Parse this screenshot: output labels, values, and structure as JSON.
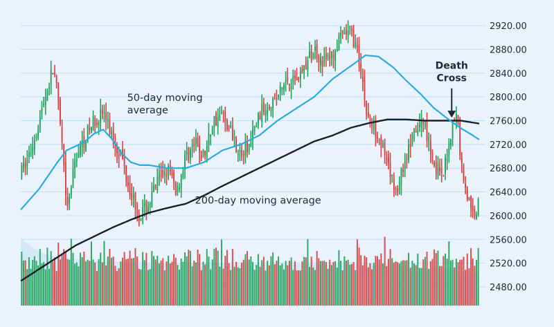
{
  "chart_data": {
    "type": "candlestick",
    "title": "",
    "xlabel": "",
    "ylabel": "",
    "y_axis_position": "right",
    "yticks": [
      2480,
      2520,
      2560,
      2600,
      2640,
      2680,
      2720,
      2760,
      2800,
      2840,
      2880,
      2920
    ],
    "ytick_labels": [
      "2480.00",
      "2520.00",
      "2560.00",
      "2600.00",
      "2640.00",
      "2680.00",
      "2720.00",
      "2760.00",
      "2800.00",
      "2840.00",
      "2880.00",
      "2920.00"
    ],
    "ylim": [
      2448,
      2930
    ],
    "grid": true,
    "colors": {
      "up": "#1fa35a",
      "down": "#d94141",
      "ma50": "#29aae1",
      "ma200": "#1c1f2a",
      "volume_area": "#cfe6f7",
      "grid": "#bfdff3",
      "background": "#eaf3fb"
    },
    "price_anchors": [
      [
        0,
        2670
      ],
      [
        5,
        2705
      ],
      [
        10,
        2760
      ],
      [
        15,
        2820
      ],
      [
        18,
        2850
      ],
      [
        20,
        2800
      ],
      [
        23,
        2700
      ],
      [
        25,
        2600
      ],
      [
        30,
        2700
      ],
      [
        35,
        2730
      ],
      [
        40,
        2760
      ],
      [
        45,
        2775
      ],
      [
        50,
        2730
      ],
      [
        55,
        2700
      ],
      [
        60,
        2640
      ],
      [
        65,
        2600
      ],
      [
        70,
        2620
      ],
      [
        75,
        2660
      ],
      [
        80,
        2680
      ],
      [
        85,
        2640
      ],
      [
        90,
        2700
      ],
      [
        95,
        2720
      ],
      [
        100,
        2700
      ],
      [
        105,
        2760
      ],
      [
        110,
        2770
      ],
      [
        115,
        2740
      ],
      [
        120,
        2700
      ],
      [
        125,
        2720
      ],
      [
        130,
        2770
      ],
      [
        135,
        2790
      ],
      [
        140,
        2800
      ],
      [
        145,
        2830
      ],
      [
        150,
        2830
      ],
      [
        155,
        2850
      ],
      [
        160,
        2880
      ],
      [
        165,
        2860
      ],
      [
        170,
        2870
      ],
      [
        175,
        2900
      ],
      [
        180,
        2910
      ],
      [
        183,
        2880
      ],
      [
        186,
        2840
      ],
      [
        188,
        2780
      ],
      [
        190,
        2760
      ],
      [
        195,
        2740
      ],
      [
        200,
        2680
      ],
      [
        205,
        2640
      ],
      [
        210,
        2700
      ],
      [
        215,
        2740
      ],
      [
        220,
        2760
      ],
      [
        225,
        2690
      ],
      [
        230,
        2660
      ],
      [
        235,
        2750
      ],
      [
        238,
        2770
      ],
      [
        240,
        2690
      ],
      [
        243,
        2640
      ],
      [
        246,
        2600
      ],
      [
        250,
        2620
      ]
    ],
    "ma50": [
      [
        0,
        2610
      ],
      [
        10,
        2645
      ],
      [
        20,
        2690
      ],
      [
        25,
        2710
      ],
      [
        30,
        2717
      ],
      [
        35,
        2725
      ],
      [
        40,
        2738
      ],
      [
        45,
        2745
      ],
      [
        50,
        2728
      ],
      [
        55,
        2705
      ],
      [
        60,
        2690
      ],
      [
        65,
        2685
      ],
      [
        70,
        2685
      ],
      [
        80,
        2680
      ],
      [
        90,
        2680
      ],
      [
        100,
        2690
      ],
      [
        110,
        2710
      ],
      [
        120,
        2720
      ],
      [
        130,
        2735
      ],
      [
        140,
        2760
      ],
      [
        150,
        2780
      ],
      [
        160,
        2800
      ],
      [
        170,
        2830
      ],
      [
        180,
        2852
      ],
      [
        188,
        2870
      ],
      [
        195,
        2868
      ],
      [
        203,
        2850
      ],
      [
        210,
        2828
      ],
      [
        218,
        2805
      ],
      [
        225,
        2782
      ],
      [
        232,
        2765
      ],
      [
        240,
        2747
      ],
      [
        245,
        2738
      ],
      [
        250,
        2728
      ]
    ],
    "ma200": [
      [
        0,
        2490
      ],
      [
        10,
        2510
      ],
      [
        20,
        2530
      ],
      [
        30,
        2550
      ],
      [
        40,
        2565
      ],
      [
        50,
        2580
      ],
      [
        60,
        2593
      ],
      [
        70,
        2605
      ],
      [
        80,
        2613
      ],
      [
        90,
        2620
      ],
      [
        100,
        2634
      ],
      [
        110,
        2650
      ],
      [
        120,
        2665
      ],
      [
        130,
        2680
      ],
      [
        140,
        2695
      ],
      [
        150,
        2710
      ],
      [
        160,
        2725
      ],
      [
        170,
        2735
      ],
      [
        180,
        2748
      ],
      [
        190,
        2756
      ],
      [
        200,
        2762
      ],
      [
        210,
        2762
      ],
      [
        220,
        2760
      ],
      [
        230,
        2760
      ],
      [
        240,
        2760
      ],
      [
        250,
        2755
      ]
    ],
    "annotations": [
      {
        "text": "50-day moving average",
        "lines": [
          "50-day moving",
          "average"
        ],
        "x": 58,
        "y": 2793
      },
      {
        "text": "200-day moving average",
        "lines": [
          "200-day moving average"
        ],
        "x": 95,
        "y": 2620
      },
      {
        "text": "Death Cross",
        "lines": [
          "Death",
          "Cross"
        ],
        "x": 235,
        "y": 2847,
        "bold": true,
        "arrow_to_y": 2765
      }
    ]
  }
}
